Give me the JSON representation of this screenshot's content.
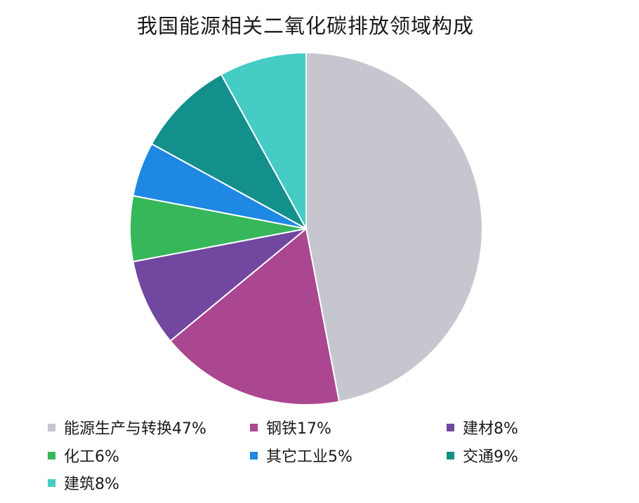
{
  "chart_data": {
    "type": "pie",
    "title": "我国能源相关二氧化碳排放领域构成",
    "start_angle_deg": 0,
    "direction": "clockwise",
    "legend_position": "bottom",
    "slices": [
      {
        "label": "能源生产与转换47%",
        "value": 47,
        "color": "#c6c7ce"
      },
      {
        "label": "钢铁17%",
        "value": 17,
        "color": "#ab4690"
      },
      {
        "label": "建材8%",
        "value": 8,
        "color": "#71479f"
      },
      {
        "label": "化工6%",
        "value": 6,
        "color": "#35b75a"
      },
      {
        "label": "其它工业5%",
        "value": 5,
        "color": "#1e88e3"
      },
      {
        "label": "交通9%",
        "value": 9,
        "color": "#138f8c"
      },
      {
        "label": "建筑8%",
        "value": 8,
        "color": "#44ccc5"
      }
    ]
  }
}
